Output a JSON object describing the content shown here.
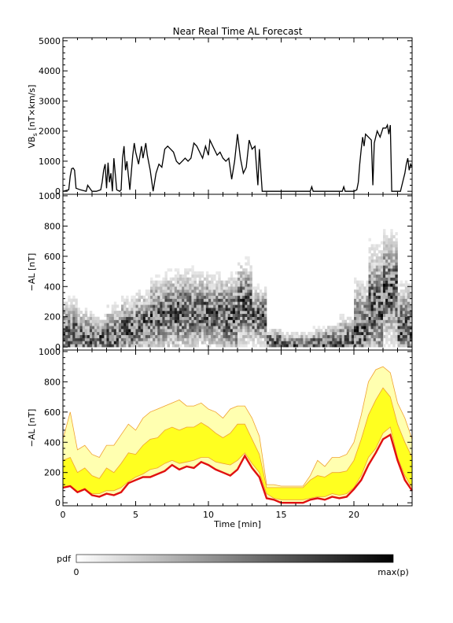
{
  "title": "Near Real Time AL Forecast",
  "colors": {
    "background": "#ffffff",
    "axes": "#000000",
    "vbs_line": "#000000",
    "al_median": "#e01010",
    "band_inner": "#ffff20",
    "band_outer": "#ffffb0",
    "band_edge": "#f0a030"
  },
  "chart_data": [
    {
      "type": "line",
      "panel": "top",
      "title": "Near Real Time AL Forecast",
      "ylabel_main": "VB",
      "ylabel_sub": "s",
      "ylabel_units": " [nT×km/s]",
      "xlim": [
        0,
        24
      ],
      "ylim": [
        -100,
        5100
      ],
      "yticks": [
        0,
        1000,
        2000,
        3000,
        4000,
        5000
      ],
      "ytick_labels": [
        "0",
        "1000",
        "2000",
        "3000",
        "4000",
        "5000"
      ],
      "series": [
        {
          "x": [
            0,
            0.4,
            0.5,
            0.6,
            0.7,
            0.8,
            0.9,
            1.2,
            1.6,
            1.7,
            2.0,
            2.3,
            2.6,
            2.7,
            2.8,
            2.9,
            3.0,
            3.1,
            3.2,
            3.3,
            3.4,
            3.5,
            3.7,
            3.9,
            4.0,
            4.1,
            4.2,
            4.3,
            4.4,
            4.6,
            4.8,
            4.9,
            5.0,
            5.2,
            5.4,
            5.5,
            5.7,
            5.8,
            6.0,
            6.2,
            6.4,
            6.6,
            6.8,
            7.0,
            7.2,
            7.4,
            7.6,
            7.8,
            8.0,
            8.2,
            8.4,
            8.6,
            8.8,
            9.0,
            9.2,
            9.4,
            9.6,
            9.8,
            10.0,
            10.1,
            10.2,
            10.4,
            10.6,
            10.8,
            11.0,
            11.2,
            11.4,
            11.6,
            11.8,
            12.0,
            12.2,
            12.4,
            12.6,
            12.8,
            13.0,
            13.2,
            13.4,
            13.5,
            13.7,
            13.9,
            14.5,
            15.0,
            16.0,
            17.0,
            17.1,
            17.2,
            18.0,
            19.0,
            19.2,
            19.3,
            19.4,
            19.5,
            20.0,
            20.2,
            20.3,
            20.4,
            20.5,
            20.6,
            20.7,
            20.8,
            21.0,
            21.2,
            21.3,
            21.4,
            21.6,
            21.8,
            22.0,
            22.2,
            22.3,
            22.4,
            22.5,
            22.6,
            22.8,
            23.0,
            23.2,
            23.4,
            23.5,
            23.6,
            23.7,
            23.8,
            23.9,
            24.0
          ],
          "y": [
            0,
            50,
            500,
            750,
            770,
            700,
            100,
            50,
            0,
            200,
            0,
            0,
            50,
            300,
            700,
            900,
            100,
            950,
            300,
            600,
            0,
            1100,
            50,
            0,
            50,
            1100,
            1500,
            700,
            1000,
            50,
            1200,
            1600,
            1300,
            900,
            1500,
            1100,
            1600,
            1200,
            700,
            0,
            600,
            900,
            800,
            1400,
            1500,
            1400,
            1300,
            1000,
            900,
            1000,
            1100,
            1000,
            1100,
            1600,
            1500,
            1300,
            1100,
            1500,
            1200,
            1700,
            1600,
            1400,
            1200,
            1300,
            1100,
            1000,
            1100,
            400,
            1000,
            1900,
            1100,
            600,
            800,
            1700,
            1400,
            1500,
            200,
            1400,
            0,
            0,
            0,
            0,
            0,
            0,
            150,
            0,
            0,
            0,
            0,
            150,
            0,
            0,
            0,
            50,
            300,
            900,
            1400,
            1800,
            1500,
            1900,
            1800,
            1700,
            200,
            1600,
            2000,
            1800,
            2100,
            2100,
            2200,
            1900,
            2200,
            0,
            0,
            0,
            0,
            400,
            600,
            900,
            1100,
            700,
            900,
            800
          ]
        }
      ]
    },
    {
      "type": "heatmap",
      "panel": "middle",
      "ylabel": "−AL [nT]",
      "xlim": [
        0,
        24
      ],
      "ylim": [
        -20,
        1010
      ],
      "yticks": [
        0,
        200,
        400,
        600,
        800,
        1000
      ],
      "ytick_labels": [
        "0",
        "200",
        "400",
        "600",
        "800",
        "1000"
      ],
      "colorscale": "white-to-black probability",
      "x": [
        0.5,
        1.5,
        2.5,
        3.5,
        4.5,
        5.5,
        6.5,
        7.5,
        8.5,
        9.5,
        10.5,
        11.5,
        12.5,
        13.5,
        14.5,
        15.5,
        16.5,
        17.5,
        18.5,
        19.5,
        20.5,
        21.5,
        22.5,
        23.5
      ],
      "median_al": [
        80,
        60,
        50,
        60,
        120,
        150,
        200,
        220,
        230,
        230,
        220,
        190,
        280,
        200,
        40,
        10,
        10,
        20,
        30,
        30,
        120,
        250,
        380,
        130
      ],
      "upper_al": [
        380,
        300,
        250,
        330,
        380,
        420,
        520,
        560,
        580,
        560,
        540,
        560,
        640,
        450,
        120,
        110,
        110,
        150,
        180,
        250,
        520,
        780,
        850,
        500
      ]
    },
    {
      "type": "area",
      "panel": "bottom",
      "ylabel": "−AL [nT]",
      "xlabel": "Time [min]",
      "xlim": [
        0,
        24
      ],
      "ylim": [
        -20,
        1010
      ],
      "xticks": [
        0,
        5,
        10,
        15,
        20
      ],
      "xtick_labels": [
        "0",
        "5",
        "10",
        "15",
        "20"
      ],
      "yticks": [
        0,
        200,
        400,
        600,
        800,
        1000
      ],
      "ytick_labels": [
        "0",
        "200",
        "400",
        "600",
        "800",
        "1000"
      ],
      "x": [
        0,
        0.5,
        1,
        1.5,
        2,
        2.5,
        3,
        3.5,
        4,
        4.5,
        5,
        5.5,
        6,
        6.5,
        7,
        7.5,
        8,
        8.5,
        9,
        9.5,
        10,
        10.5,
        11,
        11.5,
        12,
        12.5,
        13,
        13.5,
        14,
        14.5,
        15,
        15.5,
        16,
        16.5,
        17,
        17.5,
        18,
        18.5,
        19,
        19.5,
        20,
        20.5,
        21,
        21.5,
        22,
        22.5,
        23,
        23.5,
        24
      ],
      "median": [
        100,
        110,
        70,
        90,
        50,
        40,
        60,
        50,
        70,
        130,
        150,
        170,
        170,
        190,
        210,
        250,
        220,
        240,
        230,
        270,
        250,
        220,
        200,
        180,
        220,
        310,
        230,
        170,
        30,
        20,
        0,
        0,
        0,
        0,
        20,
        30,
        20,
        40,
        30,
        40,
        90,
        150,
        250,
        330,
        420,
        450,
        280,
        150,
        80
      ],
      "inner_low": [
        100,
        110,
        70,
        90,
        60,
        60,
        80,
        80,
        100,
        140,
        170,
        190,
        220,
        230,
        260,
        280,
        260,
        270,
        280,
        300,
        300,
        270,
        260,
        250,
        280,
        330,
        260,
        200,
        60,
        30,
        20,
        20,
        20,
        20,
        30,
        40,
        40,
        60,
        50,
        60,
        100,
        180,
        300,
        360,
        460,
        500,
        300,
        180,
        100
      ],
      "inner_high": [
        280,
        300,
        200,
        230,
        180,
        160,
        230,
        200,
        260,
        330,
        320,
        380,
        420,
        430,
        480,
        500,
        480,
        500,
        500,
        530,
        500,
        460,
        430,
        460,
        520,
        520,
        420,
        320,
        100,
        100,
        100,
        100,
        100,
        100,
        150,
        180,
        170,
        200,
        200,
        210,
        280,
        420,
        580,
        680,
        760,
        700,
        520,
        400,
        300
      ],
      "outer_high": [
        420,
        600,
        350,
        380,
        320,
        300,
        380,
        380,
        450,
        520,
        480,
        560,
        600,
        620,
        640,
        660,
        680,
        640,
        640,
        660,
        620,
        600,
        560,
        620,
        640,
        640,
        560,
        440,
        120,
        120,
        110,
        110,
        110,
        110,
        180,
        280,
        240,
        300,
        300,
        320,
        400,
        580,
        800,
        880,
        900,
        860,
        660,
        560,
        420
      ]
    }
  ],
  "colorbar": {
    "label": "pdf",
    "min_label": "0",
    "max_label": "max(p)"
  }
}
